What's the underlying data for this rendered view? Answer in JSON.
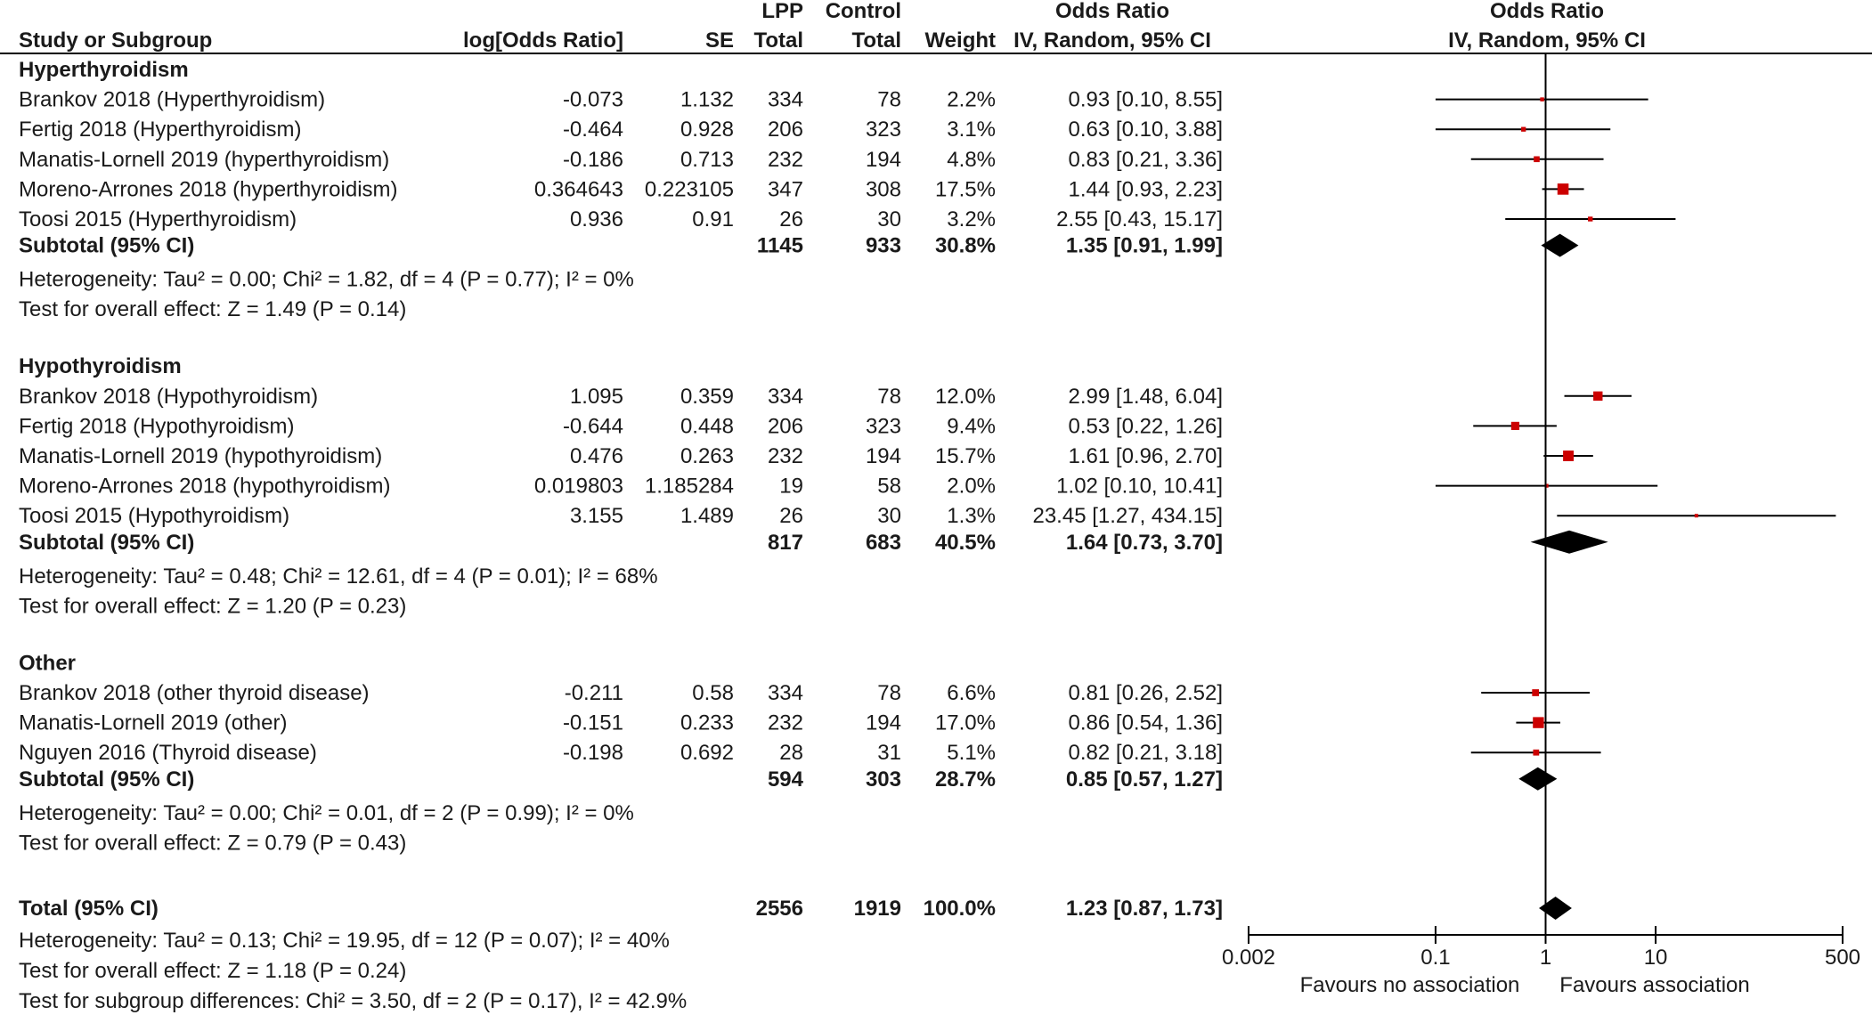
{
  "header": {
    "study": "Study or Subgroup",
    "log_or": "log[Odds Ratio]",
    "se": "SE",
    "lpp_top": "LPP",
    "lpp_bottom": "Total",
    "control_top": "Control",
    "control_bottom": "Total",
    "weight": "Weight",
    "or_top": "Odds Ratio",
    "or_bottom": "IV, Random, 95% CI",
    "plot_top": "Odds Ratio",
    "plot_bottom": "IV, Random, 95% CI"
  },
  "axis": {
    "tick_labels": [
      "0.002",
      "0.1",
      "1",
      "10",
      "500"
    ],
    "favours_left": "Favours no association",
    "favours_right": "Favours association"
  },
  "chart_data": {
    "type": "forest",
    "scale": "log",
    "xlim": [
      0.002,
      500
    ],
    "ticks": [
      0.002,
      0.1,
      1,
      10,
      500
    ],
    "groups": [
      {
        "name": "Hyperthyroidism",
        "studies": [
          {
            "study": "Brankov 2018 (Hyperthyroidism)",
            "log_or": "-0.073",
            "se": "1.132",
            "lpp_total": "334",
            "control_total": "78",
            "weight": "2.2%",
            "ci_text": "0.93 [0.10, 8.55]",
            "or": 0.93,
            "lo": 0.1,
            "hi": 8.55
          },
          {
            "study": "Fertig 2018 (Hyperthyroidism)",
            "log_or": "-0.464",
            "se": "0.928",
            "lpp_total": "206",
            "control_total": "323",
            "weight": "3.1%",
            "ci_text": "0.63 [0.10, 3.88]",
            "or": 0.63,
            "lo": 0.1,
            "hi": 3.88
          },
          {
            "study": "Manatis-Lornell 2019 (hyperthyroidism)",
            "log_or": "-0.186",
            "se": "0.713",
            "lpp_total": "232",
            "control_total": "194",
            "weight": "4.8%",
            "ci_text": "0.83 [0.21, 3.36]",
            "or": 0.83,
            "lo": 0.21,
            "hi": 3.36
          },
          {
            "study": "Moreno-Arrones 2018 (hyperthyroidism)",
            "log_or": "0.364643",
            "se": "0.223105",
            "lpp_total": "347",
            "control_total": "308",
            "weight": "17.5%",
            "ci_text": "1.44 [0.93, 2.23]",
            "or": 1.44,
            "lo": 0.93,
            "hi": 2.23
          },
          {
            "study": "Toosi 2015 (Hyperthyroidism)",
            "log_or": "0.936",
            "se": "0.91",
            "lpp_total": "26",
            "control_total": "30",
            "weight": "3.2%",
            "ci_text": "2.55 [0.43, 15.17]",
            "or": 2.55,
            "lo": 0.43,
            "hi": 15.17
          }
        ],
        "subtotal": {
          "label": "Subtotal (95% CI)",
          "lpp_total": "1145",
          "control_total": "933",
          "weight": "30.8%",
          "ci_text": "1.35 [0.91, 1.99]",
          "or": 1.35,
          "lo": 0.91,
          "hi": 1.99
        },
        "heterogeneity": "Heterogeneity: Tau² = 0.00; Chi² = 1.82, df = 4 (P = 0.77); I² = 0%",
        "overall": "Test for overall effect: Z = 1.49 (P = 0.14)"
      },
      {
        "name": "Hypothyroidism",
        "studies": [
          {
            "study": "Brankov 2018 (Hypothyroidism)",
            "log_or": "1.095",
            "se": "0.359",
            "lpp_total": "334",
            "control_total": "78",
            "weight": "12.0%",
            "ci_text": "2.99 [1.48, 6.04]",
            "or": 2.99,
            "lo": 1.48,
            "hi": 6.04
          },
          {
            "study": "Fertig 2018 (Hypothyroidism)",
            "log_or": "-0.644",
            "se": "0.448",
            "lpp_total": "206",
            "control_total": "323",
            "weight": "9.4%",
            "ci_text": "0.53 [0.22, 1.26]",
            "or": 0.53,
            "lo": 0.22,
            "hi": 1.26
          },
          {
            "study": "Manatis-Lornell 2019 (hypothyroidism)",
            "log_or": "0.476",
            "se": "0.263",
            "lpp_total": "232",
            "control_total": "194",
            "weight": "15.7%",
            "ci_text": "1.61 [0.96, 2.70]",
            "or": 1.61,
            "lo": 0.96,
            "hi": 2.7
          },
          {
            "study": "Moreno-Arrones 2018 (hypothyroidism)",
            "log_or": "0.019803",
            "se": "1.185284",
            "lpp_total": "19",
            "control_total": "58",
            "weight": "2.0%",
            "ci_text": "1.02 [0.10, 10.41]",
            "or": 1.02,
            "lo": 0.1,
            "hi": 10.41
          },
          {
            "study": "Toosi 2015 (Hypothyroidism)",
            "log_or": "3.155",
            "se": "1.489",
            "lpp_total": "26",
            "control_total": "30",
            "weight": "1.3%",
            "ci_text": "23.45 [1.27, 434.15]",
            "or": 23.45,
            "lo": 1.27,
            "hi": 434.15
          }
        ],
        "subtotal": {
          "label": "Subtotal (95% CI)",
          "lpp_total": "817",
          "control_total": "683",
          "weight": "40.5%",
          "ci_text": "1.64 [0.73, 3.70]",
          "or": 1.64,
          "lo": 0.73,
          "hi": 3.7
        },
        "heterogeneity": "Heterogeneity: Tau² = 0.48; Chi² = 12.61, df = 4 (P = 0.01); I² = 68%",
        "overall": "Test for overall effect: Z = 1.20 (P = 0.23)"
      },
      {
        "name": "Other",
        "studies": [
          {
            "study": "Brankov 2018 (other thyroid disease)",
            "log_or": "-0.211",
            "se": "0.58",
            "lpp_total": "334",
            "control_total": "78",
            "weight": "6.6%",
            "ci_text": "0.81 [0.26, 2.52]",
            "or": 0.81,
            "lo": 0.26,
            "hi": 2.52
          },
          {
            "study": "Manatis-Lornell 2019 (other)",
            "log_or": "-0.151",
            "se": "0.233",
            "lpp_total": "232",
            "control_total": "194",
            "weight": "17.0%",
            "ci_text": "0.86 [0.54, 1.36]",
            "or": 0.86,
            "lo": 0.54,
            "hi": 1.36
          },
          {
            "study": "Nguyen 2016 (Thyroid disease)",
            "log_or": "-0.198",
            "se": "0.692",
            "lpp_total": "28",
            "control_total": "31",
            "weight": "5.1%",
            "ci_text": "0.82 [0.21, 3.18]",
            "or": 0.82,
            "lo": 0.21,
            "hi": 3.18
          }
        ],
        "subtotal": {
          "label": "Subtotal (95% CI)",
          "lpp_total": "594",
          "control_total": "303",
          "weight": "28.7%",
          "ci_text": "0.85 [0.57, 1.27]",
          "or": 0.85,
          "lo": 0.57,
          "hi": 1.27
        },
        "heterogeneity": "Heterogeneity: Tau² = 0.00; Chi² = 0.01, df = 2 (P = 0.99); I² = 0%",
        "overall": "Test for overall effect: Z = 0.79 (P = 0.43)"
      }
    ],
    "total": {
      "label": "Total (95% CI)",
      "lpp_total": "2556",
      "control_total": "1919",
      "weight": "100.0%",
      "ci_text": "1.23 [0.87, 1.73]",
      "or": 1.23,
      "lo": 0.87,
      "hi": 1.73,
      "heterogeneity": "Heterogeneity: Tau² = 0.13; Chi² = 19.95, df = 12 (P = 0.07); I² = 40%",
      "overall": "Test for overall effect: Z = 1.18 (P = 0.24)",
      "subgroup": "Test for subgroup differences: Chi² = 3.50, df = 2 (P = 0.17), I² = 42.9%"
    },
    "colors": {
      "study_marker": "#cc0000",
      "diamond": "#000000",
      "line": "#000000"
    }
  }
}
